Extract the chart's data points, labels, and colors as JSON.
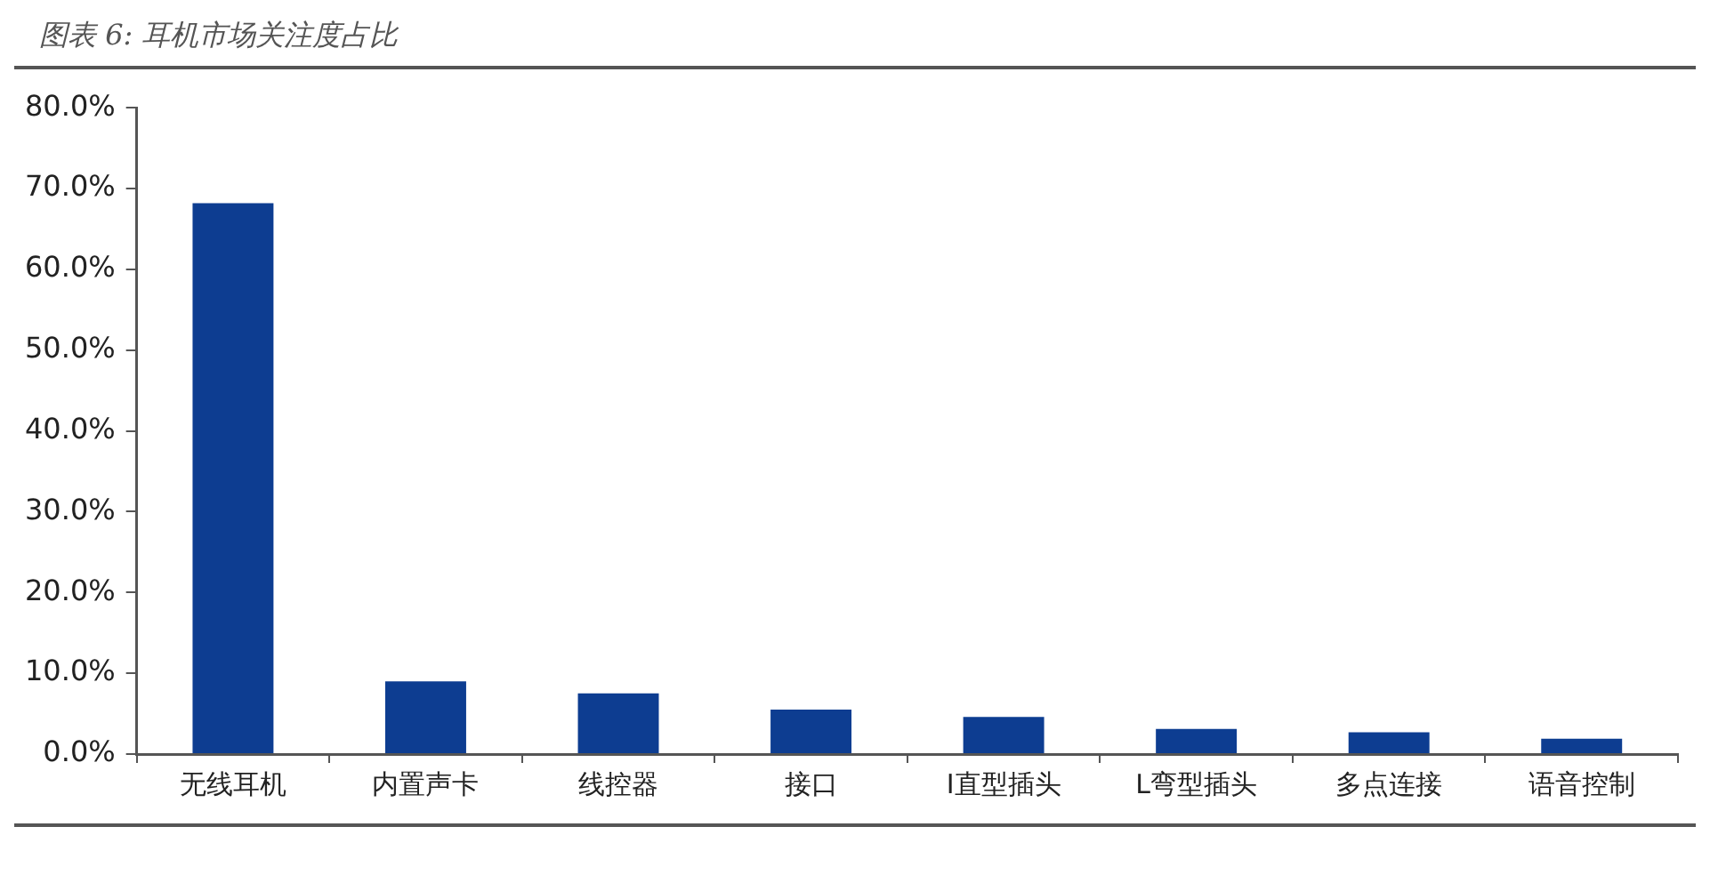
{
  "chart_data": {
    "type": "bar",
    "title": "图表 6: 耳机市场关注度占比",
    "categories": [
      "无线耳机",
      "内置声卡",
      "线控器",
      "接口",
      "I直型插头",
      "L弯型插头",
      "多点连接",
      "语音控制"
    ],
    "values": [
      68.2,
      9.0,
      7.5,
      5.5,
      4.6,
      3.1,
      2.7,
      1.9
    ],
    "color": "#0d3d91",
    "ylim": [
      0,
      80
    ],
    "yticks": [
      {
        "value": 0,
        "label": "0.0%"
      },
      {
        "value": 10,
        "label": "10.0%"
      },
      {
        "value": 20,
        "label": "20.0%"
      },
      {
        "value": 30,
        "label": "30.0%"
      },
      {
        "value": 40,
        "label": "40.0%"
      },
      {
        "value": 50,
        "label": "50.0%"
      },
      {
        "value": 60,
        "label": "60.0%"
      },
      {
        "value": 70,
        "label": "70.0%"
      },
      {
        "value": 80,
        "label": "80.0%"
      }
    ]
  }
}
